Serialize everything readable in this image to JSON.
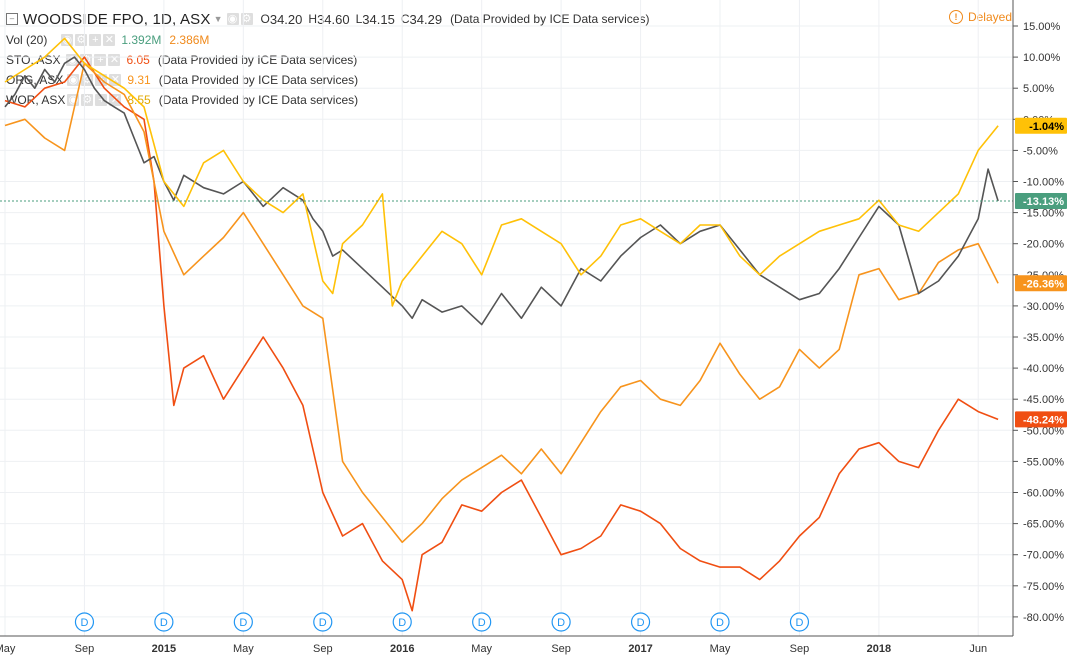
{
  "header": {
    "main_symbol": "WOODSIDE FPO, 1D, ASX",
    "ohlc": {
      "o_label": "O",
      "o": "34.20",
      "h_label": "H",
      "h": "34.60",
      "l_label": "L",
      "l": "34.15",
      "c_label": "C",
      "c": "34.29"
    },
    "provided": "(Data Provided by ICE Data services)",
    "delayed": "Delayed"
  },
  "volume": {
    "label": "Vol (20)",
    "value1": "1.392M",
    "value2": "2.386M",
    "color1": "#4a9e7e",
    "color2": "#f08a1c"
  },
  "compare": [
    {
      "symbol": "STO, ASX",
      "value": "6.05",
      "color": "#f04e12",
      "provided": "(Data Provided by ICE Data services)"
    },
    {
      "symbol": "ORG, ASX",
      "value": "9.31",
      "color": "#f7941d",
      "provided": "(Data Provided by ICE Data services)"
    },
    {
      "symbol": "WOR, ASX",
      "value": "8.55",
      "color": "#ffc107",
      "provided": "(Data Provided by ICE Data services)"
    }
  ],
  "chart_data": {
    "type": "line",
    "grid": true,
    "legend_position": "top-left",
    "ylim": [
      -82,
      17
    ],
    "y_ticks": [
      "15.00%",
      "10.00%",
      "5.00%",
      "0.00%",
      "-5.00%",
      "-10.00%",
      "-15.00%",
      "-20.00%",
      "-25.00%",
      "-30.00%",
      "-35.00%",
      "-40.00%",
      "-45.00%",
      "-50.00%",
      "-55.00%",
      "-60.00%",
      "-65.00%",
      "-70.00%",
      "-75.00%",
      "-80.00%"
    ],
    "x_ticks": [
      {
        "label": "May",
        "bold": false,
        "x": 0
      },
      {
        "label": "Sep",
        "bold": false,
        "x": 4
      },
      {
        "label": "2015",
        "bold": true,
        "x": 8
      },
      {
        "label": "May",
        "bold": false,
        "x": 12
      },
      {
        "label": "Sep",
        "bold": false,
        "x": 16
      },
      {
        "label": "2016",
        "bold": true,
        "x": 20
      },
      {
        "label": "May",
        "bold": false,
        "x": 24
      },
      {
        "label": "Sep",
        "bold": false,
        "x": 28
      },
      {
        "label": "2017",
        "bold": true,
        "x": 32
      },
      {
        "label": "May",
        "bold": false,
        "x": 36
      },
      {
        "label": "Sep",
        "bold": false,
        "x": 40
      },
      {
        "label": "2018",
        "bold": true,
        "x": 44
      },
      {
        "label": "Jun",
        "bold": false,
        "x": 49
      }
    ],
    "x_range": [
      0,
      50.5
    ],
    "series": [
      {
        "name": "WOODSIDE FPO",
        "color": "#555555",
        "last_label": "-13.13%",
        "last_label_bg": "#4a9e7e",
        "x": [
          0,
          0.5,
          1,
          1.5,
          2,
          2.5,
          3,
          3.5,
          4,
          4.5,
          5,
          5.5,
          6,
          6.5,
          7,
          7.5,
          8,
          8.5,
          9,
          10,
          11,
          12,
          13,
          14,
          15,
          15.5,
          16,
          16.5,
          17,
          18,
          19,
          20,
          20.5,
          21,
          22,
          23,
          24,
          25,
          26,
          27,
          28,
          29,
          30,
          31,
          32,
          33,
          34,
          35,
          36,
          37,
          38,
          39,
          40,
          41,
          42,
          43,
          44,
          45,
          46,
          47,
          48,
          49,
          49.5,
          50
        ],
        "values": [
          2,
          4,
          7,
          5,
          8,
          6,
          9,
          10,
          8,
          5,
          3,
          2,
          1,
          -3,
          -7,
          -6,
          -10,
          -13,
          -9,
          -11,
          -12,
          -10,
          -14,
          -11,
          -13,
          -16,
          -18,
          -22,
          -21,
          -24,
          -27,
          -30,
          -32,
          -29,
          -31,
          -30,
          -33,
          -28,
          -32,
          -27,
          -30,
          -24,
          -26,
          -22,
          -19,
          -17,
          -20,
          -18,
          -17,
          -21,
          -25,
          -27,
          -29,
          -28,
          -24,
          -19,
          -14,
          -17,
          -28,
          -26,
          -22,
          -16,
          -8,
          -13.13
        ]
      },
      {
        "name": "STO",
        "color": "#f04e12",
        "last_label": "-48.24%",
        "last_label_bg": "#f04e12",
        "x": [
          0,
          1,
          2,
          3,
          4,
          5,
          6,
          7,
          7.5,
          8,
          8.5,
          9,
          10,
          11,
          12,
          13,
          14,
          15,
          16,
          17,
          18,
          19,
          20,
          20.5,
          21,
          22,
          23,
          24,
          25,
          26,
          27,
          28,
          29,
          30,
          31,
          32,
          33,
          34,
          35,
          36,
          37,
          38,
          39,
          40,
          41,
          42,
          43,
          44,
          45,
          46,
          47,
          48,
          49,
          50
        ],
        "values": [
          3,
          2,
          5,
          6,
          10,
          5,
          2,
          0,
          -10,
          -30,
          -46,
          -40,
          -38,
          -45,
          -40,
          -35,
          -40,
          -46,
          -60,
          -67,
          -65,
          -71,
          -74,
          -79,
          -70,
          -68,
          -62,
          -63,
          -60,
          -58,
          -64,
          -70,
          -69,
          -67,
          -62,
          -63,
          -65,
          -69,
          -71,
          -72,
          -72,
          -74,
          -71,
          -67,
          -64,
          -57,
          -53,
          -52,
          -55,
          -56,
          -50,
          -45,
          -47,
          -48.24
        ]
      },
      {
        "name": "ORG",
        "color": "#f7941d",
        "last_label": "-26.36%",
        "last_label_bg": "#f7941d",
        "x": [
          0,
          1,
          2,
          3,
          4,
          5,
          6,
          7,
          8,
          9,
          10,
          11,
          12,
          13,
          14,
          15,
          16,
          17,
          18,
          19,
          20,
          21,
          22,
          23,
          24,
          25,
          26,
          27,
          28,
          29,
          30,
          31,
          32,
          33,
          34,
          35,
          36,
          37,
          38,
          39,
          40,
          41,
          42,
          43,
          44,
          45,
          46,
          47,
          48,
          49,
          50
        ],
        "values": [
          -1,
          0,
          -3,
          -5,
          9,
          6,
          4,
          -2,
          -18,
          -25,
          -22,
          -19,
          -15,
          -20,
          -25,
          -30,
          -32,
          -55,
          -60,
          -64,
          -68,
          -65,
          -61,
          -58,
          -56,
          -54,
          -57,
          -53,
          -57,
          -52,
          -47,
          -43,
          -42,
          -45,
          -46,
          -42,
          -36,
          -41,
          -45,
          -43,
          -37,
          -40,
          -37,
          -25,
          -24,
          -29,
          -28,
          -23,
          -21,
          -20,
          -26.36
        ]
      },
      {
        "name": "WOR",
        "color": "#ffc107",
        "last_label": "-1.04%",
        "last_label_bg": "#ffc107",
        "x": [
          0,
          1,
          2,
          3,
          4,
          5,
          6,
          7,
          8,
          9,
          10,
          11,
          12,
          13,
          14,
          15,
          16,
          16.5,
          17,
          18,
          19,
          19.5,
          20,
          21,
          22,
          23,
          24,
          25,
          26,
          27,
          28,
          29,
          30,
          31,
          32,
          33,
          34,
          35,
          36,
          37,
          38,
          39,
          40,
          41,
          42,
          43,
          44,
          45,
          46,
          47,
          48,
          49,
          50
        ],
        "values": [
          6,
          8,
          10,
          13,
          9,
          7,
          5,
          2,
          -10,
          -14,
          -7,
          -5,
          -10,
          -13,
          -15,
          -12,
          -26,
          -28,
          -20,
          -17,
          -12,
          -30,
          -26,
          -22,
          -18,
          -20,
          -25,
          -17,
          -16,
          -18,
          -20,
          -25,
          -22,
          -17,
          -16,
          -18,
          -20,
          -17,
          -17,
          -22,
          -25,
          -22,
          -20,
          -18,
          -17,
          -16,
          -13,
          -17,
          -18,
          -15,
          -12,
          -5,
          -1.04
        ]
      }
    ]
  },
  "markers": {
    "symbol": "D",
    "x": [
      4,
      8,
      12,
      16,
      20,
      24,
      28,
      32,
      36,
      40
    ]
  }
}
